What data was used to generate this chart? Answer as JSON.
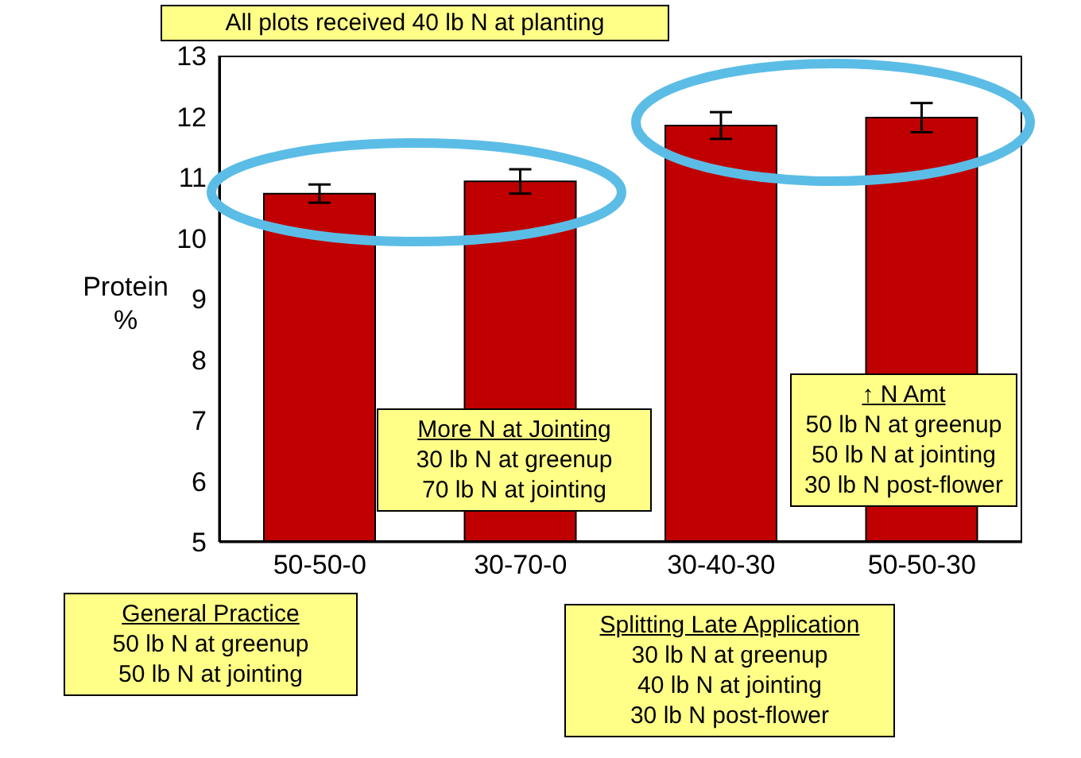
{
  "chart_data": {
    "type": "bar",
    "ylabel": "Protein\n%",
    "categories": [
      "50-50-0",
      "30-70-0",
      "30-40-30",
      "50-50-30"
    ],
    "series": [
      {
        "color": "#c00000",
        "values": [
          10.73,
          10.93,
          11.85,
          11.98
        ],
        "errors": [
          0.15,
          0.2,
          0.22,
          0.24
        ]
      }
    ],
    "ylim": [
      5,
      13
    ],
    "yticks": [
      5,
      6,
      7,
      8,
      9,
      10,
      11,
      12,
      13
    ],
    "grid": false,
    "legend": false,
    "annotations": [
      "All plots received 40 lb N at planting",
      "General Practice\n50 lb N at greenup\n50 lb N at jointing",
      "More N at Jointing\n30 lb N at greenup\n70 lb N at jointing",
      "Splitting Late Application\n30 lb N at greenup\n40 lb N at jointing\n30 lb N post-flower",
      "↑ N Amt\n50 lb N at greenup\n50 lb N at jointing\n30 lb N post-flower"
    ]
  }
}
